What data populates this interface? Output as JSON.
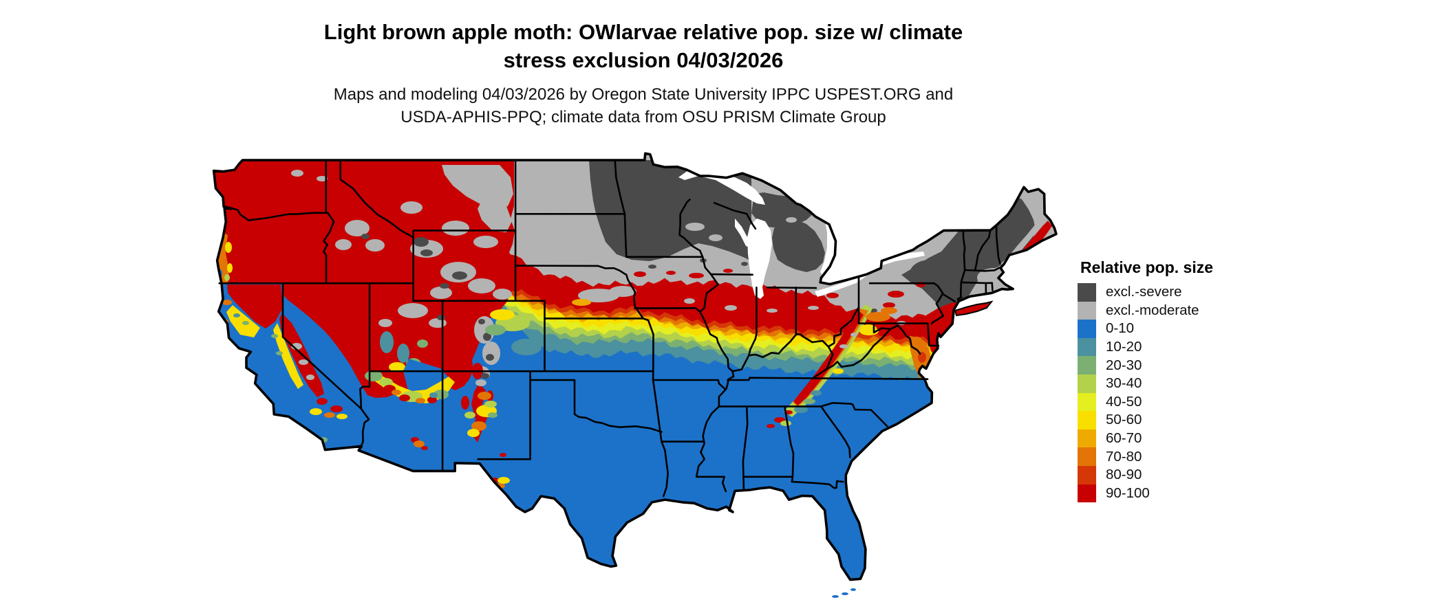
{
  "header": {
    "title_line1": "Light brown apple moth: OWlarvae relative pop. size w/ climate",
    "title_line2": "stress exclusion 04/03/2026",
    "subtitle_line1": "Maps and modeling 04/03/2026 by Oregon State University IPPC USPEST.ORG and",
    "subtitle_line2": "USDA-APHIS-PPQ; climate data from OSU PRISM Climate Group"
  },
  "legend": {
    "title": "Relative pop. size",
    "items": [
      {
        "key": "exclSevere",
        "label": "excl.-severe",
        "color": "#4a4a4a"
      },
      {
        "key": "exclModerate",
        "label": "excl.-moderate",
        "color": "#b3b3b3"
      },
      {
        "key": "b0",
        "label": "0-10",
        "color": "#1c72c9"
      },
      {
        "key": "b10",
        "label": "10-20",
        "color": "#4b919f"
      },
      {
        "key": "b20",
        "label": "20-30",
        "color": "#7bb072"
      },
      {
        "key": "b30",
        "label": "30-40",
        "color": "#b3d14b"
      },
      {
        "key": "b40",
        "label": "40-50",
        "color": "#e5ee20"
      },
      {
        "key": "b50",
        "label": "50-60",
        "color": "#f8df00"
      },
      {
        "key": "b60",
        "label": "60-70",
        "color": "#eeaa01"
      },
      {
        "key": "b70",
        "label": "70-80",
        "color": "#e27506"
      },
      {
        "key": "b80",
        "label": "80-90",
        "color": "#d63706"
      },
      {
        "key": "b90",
        "label": "90-100",
        "color": "#c80002"
      }
    ]
  },
  "map": {
    "region": "Contiguous United States",
    "border_color": "#000000",
    "water_color": "#ffffff"
  }
}
